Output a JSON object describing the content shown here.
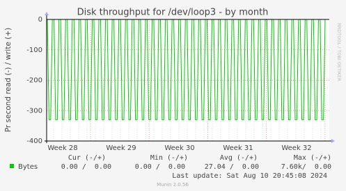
{
  "chart_data": {
    "type": "line",
    "title": "Disk throughput for /dev/loop3 - by month",
    "y_label": "Pr second read (-) / write (+)",
    "side_label": "RRDTOOL / TOBI OETIKER",
    "ylim": [
      -400,
      0
    ],
    "yticks": [
      0,
      -100,
      -200,
      -300,
      -400
    ],
    "grid": true,
    "week_labels": [
      "Week 28",
      "Week 29",
      "Week 30",
      "Week 31",
      "Week 32"
    ],
    "series": [
      {
        "name": "Bytes",
        "color": "#00cc00",
        "values": [
          0,
          -330,
          -330,
          0,
          0,
          -330,
          -330,
          0,
          0,
          -330,
          -330,
          0,
          0,
          -330,
          -330,
          0,
          0,
          -330,
          -330,
          0,
          0,
          -330,
          -330,
          0,
          0,
          -330,
          -330,
          0,
          0,
          -330,
          -330,
          0,
          0,
          -330,
          -330,
          0,
          0,
          -330,
          -330,
          0,
          0,
          -330,
          -330,
          0,
          0,
          -330,
          -330,
          0,
          0,
          -330,
          -330,
          0,
          0,
          -330,
          -330,
          0,
          0,
          -330,
          -330,
          0,
          0,
          -330,
          -330,
          0,
          0,
          -330,
          -330,
          0,
          0,
          -330,
          -330,
          0,
          0,
          -330,
          -330,
          0,
          0,
          -330,
          -330,
          0,
          0,
          -330,
          -330,
          0,
          0,
          -330,
          -330,
          0,
          0,
          -330,
          -330,
          0,
          0,
          -330,
          -330,
          0,
          0,
          -330,
          -330,
          0,
          0,
          -330,
          -330,
          0,
          0,
          -330,
          -330,
          0,
          0,
          -330,
          -330,
          0,
          0,
          -330,
          -330,
          0,
          0,
          -330,
          -330,
          0,
          0,
          -330,
          -330,
          0,
          0,
          -330,
          -330,
          0,
          0,
          -330,
          -330,
          0,
          0,
          -330,
          -330,
          0,
          0,
          -330,
          -330,
          0,
          0,
          -330,
          -330,
          0,
          0,
          -330,
          -330,
          0,
          0,
          -330,
          -330,
          0,
          0,
          -330,
          -330,
          0,
          0,
          -330,
          -330,
          0,
          0,
          -330,
          -330,
          0,
          0,
          -330,
          -330,
          0
        ]
      }
    ],
    "summary": {
      "headers": [
        "Cur (-/+)",
        "Min (-/+)",
        "Avg (-/+)",
        "Max (-/+)"
      ],
      "cells": [
        "0.00 /  0.00",
        "0.00 /  0.00",
        "27.04 /  0.00",
        "7.60k/  0.00"
      ]
    },
    "last_update": "Last update: Sat Aug 10 20:45:08 2024",
    "footer": "Munin 2.0.56"
  }
}
